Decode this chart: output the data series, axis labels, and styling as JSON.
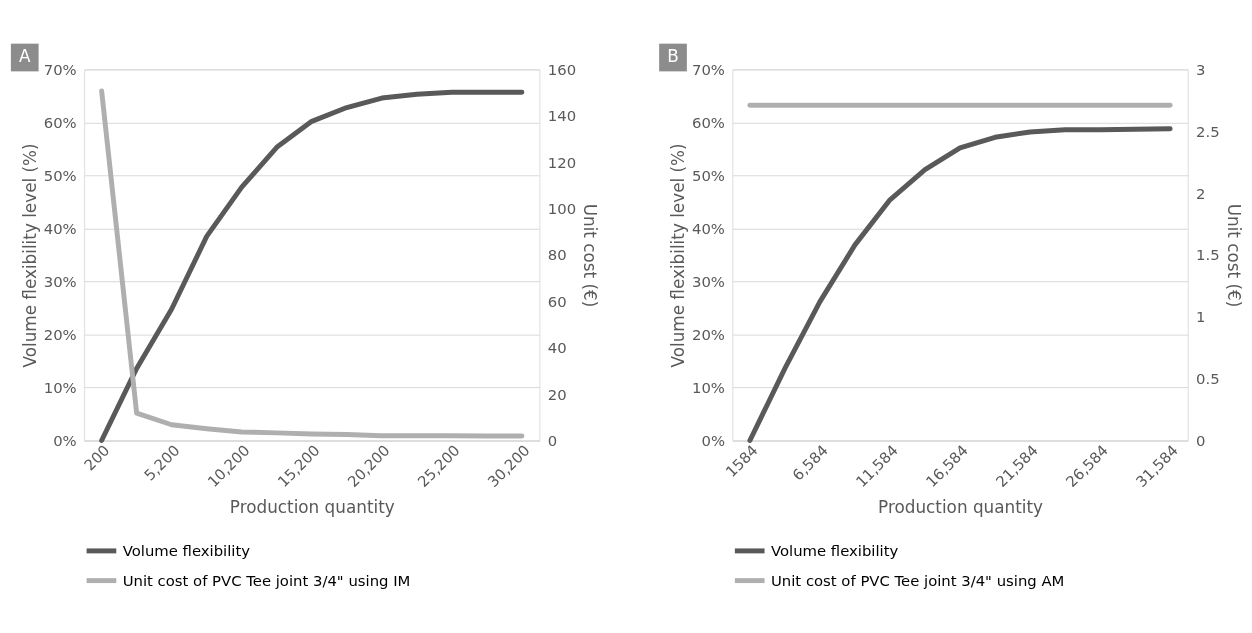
{
  "chart_data": [
    {
      "type": "line",
      "annotations": [
        "A"
      ],
      "xlabel": "Production quantity",
      "ylabel": "Volume flexibility level (%)",
      "y2label": "Unit cost (€)",
      "categories": [
        "200",
        null,
        "5,200",
        null,
        "10,200",
        null,
        "15,200",
        null,
        "20,200",
        null,
        "25,200",
        null,
        "30,200"
      ],
      "series": [
        {
          "name": "Volume flexibility",
          "color": "#595959",
          "values": [
            0,
            13.6,
            24.8,
            38.5,
            47.8,
            55.3,
            60.2,
            62.8,
            64.6,
            65.3,
            65.7,
            65.7,
            65.7
          ]
        },
        {
          "name": "Unit cost of PVC Tee joint 3/4\" using IM",
          "color": "#afafaf",
          "axis": "y2",
          "values": [
            150.7,
            11.8,
            6.8,
            5.1,
            3.7,
            3.3,
            2.8,
            2.6,
            2.1,
            2.1,
            2.1,
            2.0,
            2.0
          ]
        }
      ],
      "ylim": [
        0,
        70
      ],
      "yticks": [
        {
          "value": 0,
          "label": "0%"
        },
        {
          "value": 10,
          "label": "10%"
        },
        {
          "value": 20,
          "label": "20%"
        },
        {
          "value": 30,
          "label": "30%"
        },
        {
          "value": 40,
          "label": "40%"
        },
        {
          "value": 50,
          "label": "50%"
        },
        {
          "value": 60,
          "label": "60%"
        },
        {
          "value": 70,
          "label": "70%"
        }
      ],
      "y2lim": [
        0,
        160
      ],
      "y2ticks": [
        0,
        20,
        40,
        60,
        80,
        100,
        120,
        140,
        160
      ],
      "grid": "y",
      "legend": "bottom",
      "marker": "none",
      "line_style": "solid"
    },
    {
      "type": "line",
      "annotations": [
        "B"
      ],
      "xlabel": "Production quantity",
      "ylabel": "Volume flexibility level (%)",
      "y2label": "Unit cost (€)",
      "categories": [
        "1584",
        null,
        "6,584",
        null,
        "11,584",
        null,
        "16,584",
        null,
        "21,584",
        null,
        "26,584",
        null,
        "31,584"
      ],
      "series": [
        {
          "name": "Volume flexibility",
          "color": "#595959",
          "values": [
            0,
            13.6,
            26.2,
            36.9,
            45.4,
            51.1,
            55.2,
            57.2,
            58.2,
            58.6,
            58.6,
            58.7,
            58.8
          ]
        },
        {
          "name": "Unit cost of PVC Tee joint 3/4\" using AM",
          "color": "#afafaf",
          "axis": "y2",
          "values": [
            2.71,
            2.71,
            2.71,
            2.71,
            2.71,
            2.71,
            2.71,
            2.71,
            2.71,
            2.71,
            2.71,
            2.71,
            2.71
          ]
        }
      ],
      "ylim": [
        0,
        70
      ],
      "yticks": [
        {
          "value": 0,
          "label": "0%"
        },
        {
          "value": 10,
          "label": "10%"
        },
        {
          "value": 20,
          "label": "20%"
        },
        {
          "value": 30,
          "label": "30%"
        },
        {
          "value": 40,
          "label": "40%"
        },
        {
          "value": 50,
          "label": "50%"
        },
        {
          "value": 60,
          "label": "60%"
        },
        {
          "value": 70,
          "label": "70%"
        }
      ],
      "y2lim": [
        0,
        3
      ],
      "y2ticks": [
        0,
        0.5,
        1,
        1.5,
        2,
        2.5,
        3
      ],
      "grid": "y",
      "legend": "bottom",
      "marker": "none",
      "line_style": "solid"
    }
  ]
}
